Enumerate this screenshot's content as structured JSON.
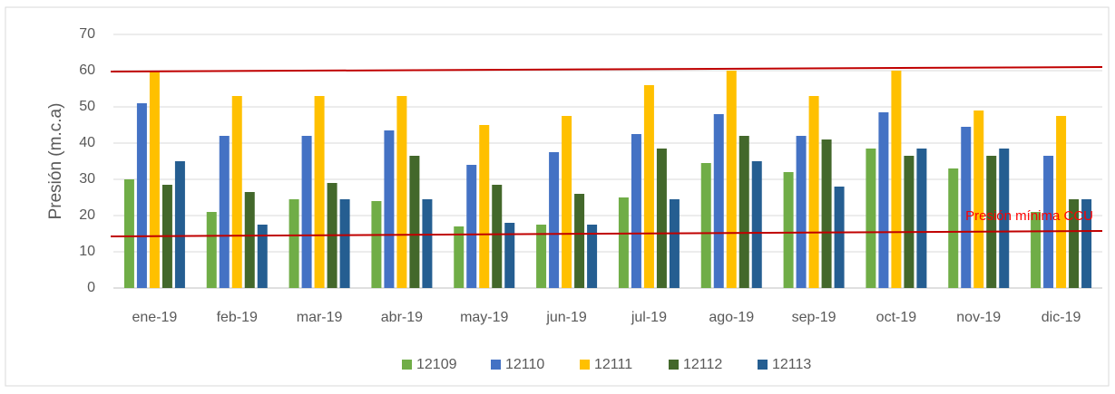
{
  "chart_data": {
    "type": "bar",
    "y_label": "Presión (m.c.a)",
    "categories": [
      "ene-19",
      "feb-19",
      "mar-19",
      "abr-19",
      "may-19",
      "jun-19",
      "jul-19",
      "ago-19",
      "sep-19",
      "oct-19",
      "nov-19",
      "dic-19"
    ],
    "series": [
      {
        "name": "12109",
        "color": "#70ad47",
        "values": [
          30,
          21,
          24.5,
          24,
          17,
          17.5,
          25,
          34.5,
          32,
          38.5,
          33,
          21
        ]
      },
      {
        "name": "12110",
        "color": "#4472c4",
        "values": [
          51,
          42,
          42,
          43.5,
          34,
          37.5,
          42.5,
          48,
          42,
          48.5,
          44.5,
          36.5
        ]
      },
      {
        "name": "12111",
        "color": "#ffc000",
        "values": [
          60,
          53,
          53,
          53,
          45,
          47.5,
          56,
          60,
          53,
          60,
          49,
          47.5
        ]
      },
      {
        "name": "12112",
        "color": "#43682b",
        "values": [
          28.5,
          26.5,
          29,
          36.5,
          28.5,
          26,
          38.5,
          42,
          41,
          36.5,
          36.5,
          24.5
        ]
      },
      {
        "name": "12113",
        "color": "#255e91",
        "values": [
          35,
          17.5,
          24.5,
          24.5,
          18,
          17.5,
          24.5,
          35,
          28,
          38.5,
          38.5,
          24.5
        ]
      }
    ],
    "ylim": [
      0,
      70
    ],
    "yticks": [
      0,
      10,
      20,
      30,
      40,
      50,
      60,
      70
    ],
    "grid": true,
    "legend": "bottom",
    "reference_lines": [
      {
        "y_start": 59.75,
        "y_end": 61,
        "color": "#c00000"
      },
      {
        "y_start": 14.25,
        "y_end": 15.75,
        "color": "#c00000"
      }
    ],
    "annotation": {
      "text": "Presión mínima CCU",
      "color": "#ff0000"
    }
  }
}
